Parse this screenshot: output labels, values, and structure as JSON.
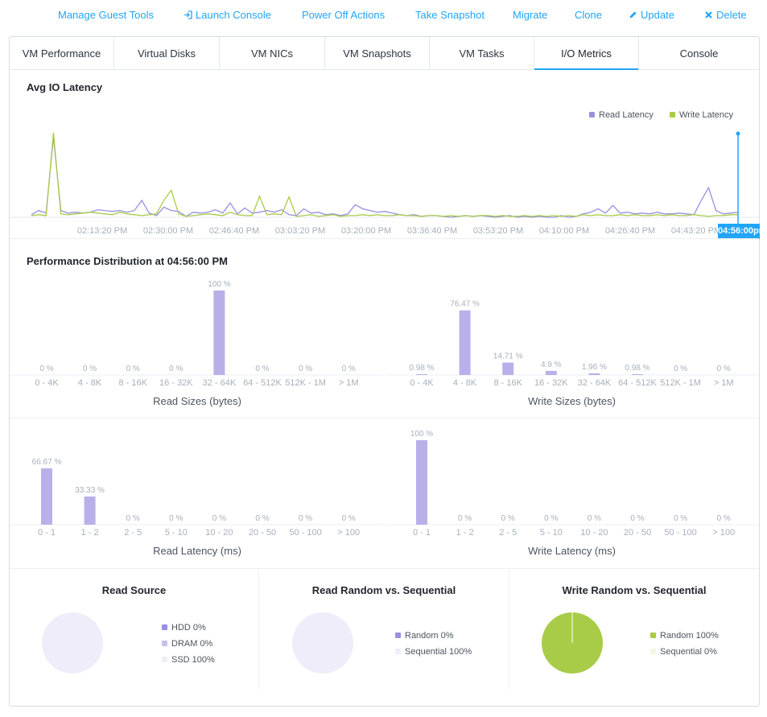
{
  "actions": [
    {
      "label": "Manage Guest Tools",
      "icon": ""
    },
    {
      "label": "Launch Console",
      "icon": "launch-icon"
    },
    {
      "label": "Power Off Actions",
      "icon": ""
    },
    {
      "label": "Take Snapshot",
      "icon": ""
    },
    {
      "label": "Migrate",
      "icon": ""
    },
    {
      "label": "Clone",
      "icon": ""
    },
    {
      "label": "Update",
      "icon": "pencil-icon"
    },
    {
      "label": "Delete",
      "icon": "x-icon"
    }
  ],
  "tabs": [
    "VM Performance",
    "Virtual Disks",
    "VM NICs",
    "VM Snapshots",
    "VM Tasks",
    "I/O Metrics",
    "Console"
  ],
  "active_tab": "I/O Metrics",
  "colors": {
    "accent": "#22a5f7",
    "read": "#9b8fe0",
    "write": "#a8cc48",
    "bar": "#b9b0ea",
    "pie_empty": "#efedfa"
  },
  "latency_chart": {
    "title": "Avg IO Latency",
    "legend": [
      "Read Latency",
      "Write Latency"
    ],
    "x_ticks": [
      "02:13:20 PM",
      "02:30:00 PM",
      "02:46:40 PM",
      "03:03:20 PM",
      "03:20:00 PM",
      "03:36:40 PM",
      "03:53:20 PM",
      "04:10:00 PM",
      "04:26:40 PM",
      "04:43:20 PM"
    ],
    "cursor_label": "04:56:00pm"
  },
  "distribution_title": "Performance Distribution at 04:56:00 PM",
  "chart_data": [
    {
      "type": "line",
      "title": "Avg IO Latency",
      "series": [
        {
          "name": "Read Latency",
          "values": [
            3,
            8,
            5,
            95,
            8,
            5,
            6,
            5,
            6,
            9,
            8,
            7,
            8,
            6,
            8,
            20,
            5,
            2,
            12,
            8,
            7,
            1,
            6,
            5,
            6,
            9,
            5,
            17,
            4,
            11,
            5,
            6,
            8,
            6,
            9,
            3,
            2,
            10,
            5,
            6,
            3,
            4,
            2,
            4,
            15,
            10,
            8,
            6,
            7,
            5,
            3,
            2,
            3,
            1,
            2,
            2,
            1,
            0,
            1,
            2,
            1,
            2,
            1,
            0,
            1,
            2,
            0,
            1,
            0,
            1,
            0,
            0,
            2,
            0,
            1,
            4,
            6,
            10,
            5,
            14,
            5,
            6,
            4,
            5,
            4,
            6,
            4,
            4,
            5,
            4,
            3,
            20,
            35,
            8,
            4,
            5,
            6
          ]
        },
        {
          "name": "Write Latency",
          "values": [
            2,
            3,
            2,
            100,
            4,
            3,
            4,
            5,
            6,
            5,
            4,
            3,
            6,
            4,
            3,
            2,
            3,
            4,
            20,
            32,
            4,
            1,
            2,
            3,
            4,
            3,
            2,
            6,
            3,
            2,
            2,
            25,
            3,
            4,
            3,
            24,
            1,
            2,
            3,
            1,
            2,
            3,
            1,
            2,
            2,
            3,
            2,
            3,
            2,
            2,
            3,
            2,
            2,
            1,
            2,
            2,
            1,
            2,
            1,
            2,
            1,
            2,
            2,
            1,
            2,
            1,
            1,
            2,
            1,
            2,
            1,
            2,
            1,
            2,
            1,
            3,
            2,
            3,
            2,
            2,
            3,
            2,
            3,
            2,
            2,
            3,
            2,
            3,
            2,
            2,
            3,
            2,
            1,
            2,
            2,
            3,
            3
          ]
        }
      ]
    },
    {
      "type": "bar",
      "xlabel": "Read Sizes (bytes)",
      "categories": [
        "0 - 4K",
        "4 - 8K",
        "8 - 16K",
        "16 - 32K",
        "32 - 64K",
        "64 - 512K",
        "512K - 1M",
        "> 1M"
      ],
      "values": [
        0,
        0,
        0,
        0,
        100,
        0,
        0,
        0
      ],
      "labels": [
        "0 %",
        "0 %",
        "0 %",
        "0 %",
        "100 %",
        "0 %",
        "0 %",
        "0 %"
      ]
    },
    {
      "type": "bar",
      "xlabel": "Write Sizes (bytes)",
      "categories": [
        "0 - 4K",
        "4 - 8K",
        "8 - 16K",
        "16 - 32K",
        "32 - 64K",
        "64 - 512K",
        "512K - 1M",
        "> 1M"
      ],
      "values": [
        0.98,
        76.47,
        14.71,
        4.9,
        1.96,
        0.98,
        0,
        0
      ],
      "labels": [
        "0.98 %",
        "76.47 %",
        "14.71 %",
        "4.9 %",
        "1.96 %",
        "0.98 %",
        "0 %",
        "0 %"
      ]
    },
    {
      "type": "bar",
      "xlabel": "Read Latency (ms)",
      "categories": [
        "0 - 1",
        "1 - 2",
        "2 - 5",
        "5 - 10",
        "10 - 20",
        "20 - 50",
        "50 - 100",
        "> 100"
      ],
      "values": [
        66.67,
        33.33,
        0,
        0,
        0,
        0,
        0,
        0
      ],
      "labels": [
        "66.67 %",
        "33.33 %",
        "0 %",
        "0 %",
        "0 %",
        "0 %",
        "0 %",
        "0 %"
      ]
    },
    {
      "type": "bar",
      "xlabel": "Write Latency (ms)",
      "categories": [
        "0 - 1",
        "1 - 2",
        "2 - 5",
        "5 - 10",
        "10 - 20",
        "20 - 50",
        "50 - 100",
        "> 100"
      ],
      "values": [
        100,
        0,
        0,
        0,
        0,
        0,
        0,
        0
      ],
      "labels": [
        "100 %",
        "0 %",
        "0 %",
        "0 %",
        "0 %",
        "0 %",
        "0 %",
        "0 %"
      ]
    },
    {
      "type": "pie",
      "title": "Read Source",
      "slices": [
        {
          "label": "HDD 0%",
          "value": 0,
          "color": "#9b8fe0"
        },
        {
          "label": "DRAM 0%",
          "value": 0,
          "color": "#c6c0ee"
        },
        {
          "label": "SSD 100%",
          "value": 100,
          "color": "#efedfa"
        }
      ]
    },
    {
      "type": "pie",
      "title": "Read Random vs. Sequential",
      "slices": [
        {
          "label": "Random 0%",
          "value": 0,
          "color": "#9b8fe0"
        },
        {
          "label": "Sequential 100%",
          "value": 100,
          "color": "#efedfa"
        }
      ]
    },
    {
      "type": "pie",
      "title": "Write Random vs. Sequential",
      "slices": [
        {
          "label": "Random 100%",
          "value": 100,
          "color": "#a8cc48"
        },
        {
          "label": "Sequential 0%",
          "value": 0,
          "color": "#f3f6e4"
        }
      ]
    }
  ]
}
